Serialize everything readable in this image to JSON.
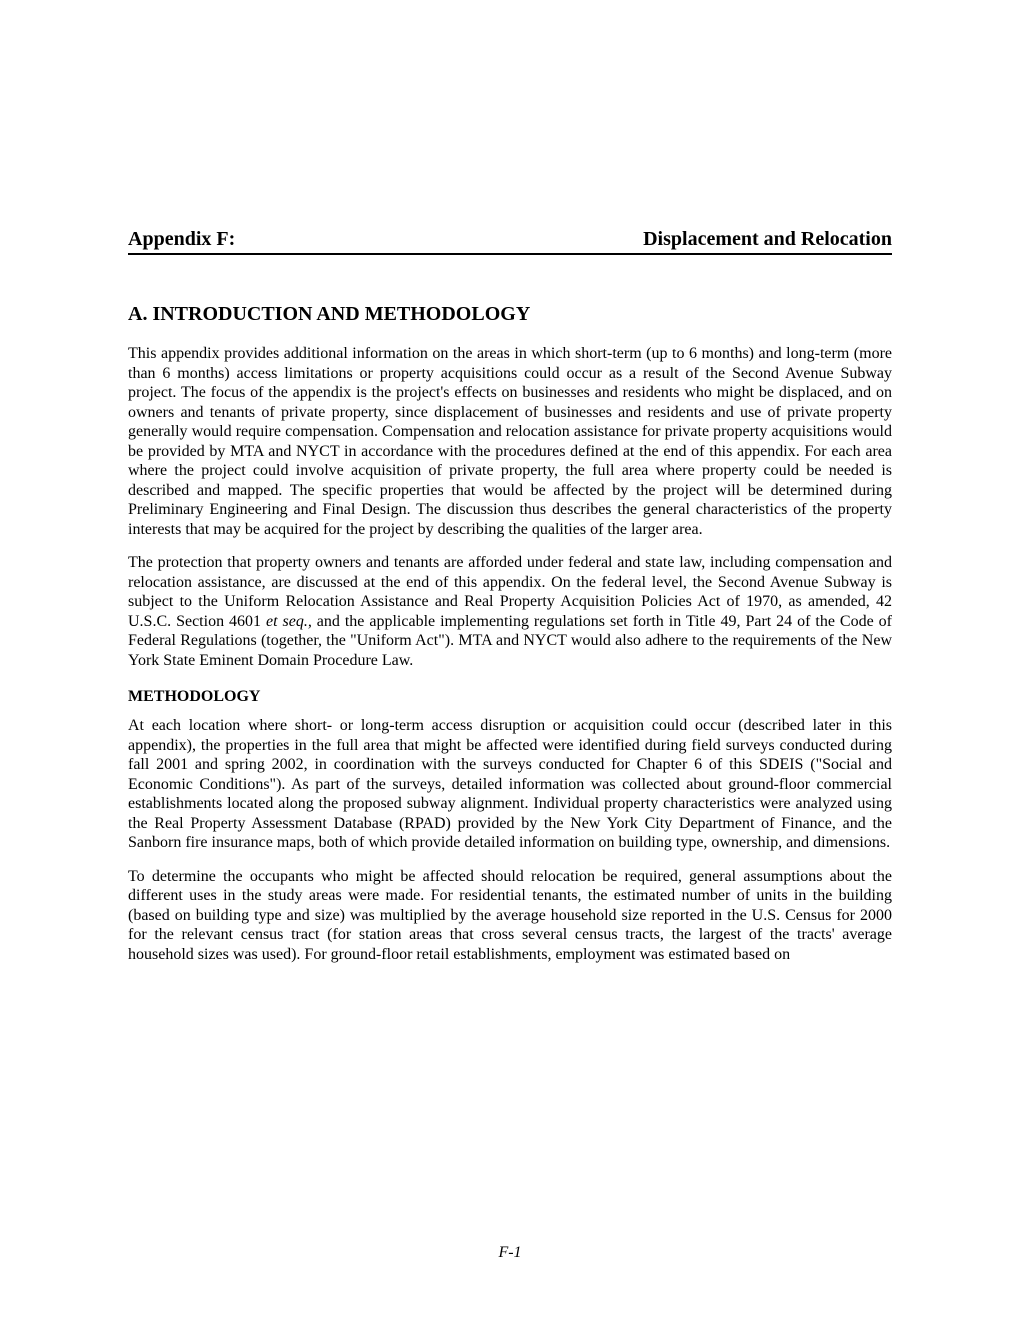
{
  "header": {
    "appendix_label": "Appendix F:",
    "title": "Displacement and Relocation"
  },
  "section_a": {
    "heading": "A. INTRODUCTION AND METHODOLOGY",
    "para1_part1": "This appendix provides additional information on the areas in which short-term (up to 6 months) and long-term (more than 6 months) access limitations or property acquisitions could occur as a result of the Second Avenue Subway project. The focus of the appendix is the project's effects on businesses and residents who might be displaced, and on owners and tenants of private property, since displacement of businesses and residents and use of private property generally would require compensation. Compensation and relocation assistance for private property acquisitions would be provided by MTA and NYCT in accordance with the procedures defined at the end of this appendix. For each area where the project could involve acquisition of private property, the full area where property could be needed is described and mapped. The specific properties that would be affected by the project will be determined during Preliminary Engineering and Final Design. The discussion thus describes the general characteristics of the property interests that may be acquired for the project by describing the qualities of the larger area.",
    "para2_part1": "The protection that property owners and tenants are afforded under federal and state law, including compensation and relocation assistance, are discussed at the end of this appendix. On the federal level, the Second Avenue Subway is subject to the Uniform Relocation Assistance and Real Property Acquisition Policies Act of 1970, as amended, 42 U.S.C. Section 4601 ",
    "para2_italic": "et seq.,",
    "para2_part2": " and the applicable implementing regulations set forth in Title 49, Part 24 of the Code of Federal Regulations (together, the \"Uniform Act\"). MTA and NYCT would also adhere to the requirements of the New York State Eminent Domain Procedure Law."
  },
  "methodology": {
    "heading": "METHODOLOGY",
    "para1": "At each location where short- or long-term access disruption or acquisition could occur (described later in this appendix), the properties in the full area that might be affected were identified during field surveys conducted during fall 2001 and spring 2002, in coordination with the surveys conducted for Chapter 6 of this SDEIS (\"Social and Economic Conditions\"). As part of the surveys, detailed information was collected about ground-floor commercial establishments located along the proposed subway alignment. Individual property characteristics were analyzed using the Real Property Assessment Database (RPAD) provided by the New York City Department of Finance, and the Sanborn fire insurance maps, both of which provide detailed information on building type, ownership, and dimensions.",
    "para2": "To determine the occupants who might be affected should relocation be required, general assumptions about the different uses in the study areas were made. For residential tenants, the estimated number of units in the building (based on building type and size) was multiplied by the average household size reported in the U.S. Census for 2000 for the relevant census tract (for station areas that cross several census tracts, the largest of the tracts' average household sizes was used). For ground-floor retail establishments, employment was estimated based on"
  },
  "page_number": "F-1"
}
